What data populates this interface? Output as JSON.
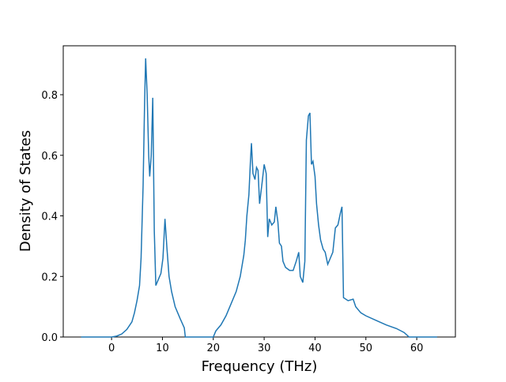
{
  "chart_data": {
    "type": "line",
    "x_label": "Frequency (THz)",
    "y_label": "Density of States",
    "x": [
      -6,
      0,
      1,
      2,
      3,
      4,
      4.5,
      5,
      5.5,
      5.8,
      6.2,
      6.5,
      6.7,
      7,
      7.3,
      7.5,
      7.8,
      8.1,
      8.4,
      8.7,
      9.2,
      9.7,
      10.1,
      10.5,
      10.9,
      11.3,
      11.8,
      12.5,
      13.5,
      14.3,
      14.5,
      20,
      20.5,
      21.5,
      22.5,
      23.5,
      24.5,
      25.3,
      26,
      26.3,
      26.6,
      27,
      27.3,
      27.5,
      27.8,
      28.2,
      28.5,
      28.8,
      29.1,
      29.6,
      30,
      30.4,
      30.7,
      31,
      31.5,
      32,
      32.3,
      32.7,
      33,
      33.4,
      33.7,
      34.2,
      35,
      35.7,
      36.3,
      36.8,
      37.1,
      37.6,
      38,
      38.3,
      38.7,
      39,
      39.3,
      39.6,
      40,
      40.3,
      40.7,
      41.1,
      41.6,
      42,
      42.5,
      43,
      43.5,
      44,
      44.5,
      45,
      45.3,
      45.6,
      46.5,
      47.5,
      48,
      49,
      50,
      52,
      54,
      56,
      57.5,
      58.5,
      64
    ],
    "series": [
      {
        "color": "#1f77b4",
        "values": [
          0,
          0,
          0.003,
          0.01,
          0.025,
          0.05,
          0.08,
          0.12,
          0.17,
          0.26,
          0.5,
          0.78,
          0.92,
          0.8,
          0.6,
          0.53,
          0.6,
          0.79,
          0.35,
          0.17,
          0.19,
          0.21,
          0.26,
          0.39,
          0.29,
          0.2,
          0.15,
          0.1,
          0.06,
          0.03,
          0,
          0,
          0.02,
          0.04,
          0.07,
          0.11,
          0.15,
          0.2,
          0.27,
          0.32,
          0.4,
          0.47,
          0.58,
          0.64,
          0.54,
          0.52,
          0.56,
          0.55,
          0.44,
          0.51,
          0.57,
          0.54,
          0.33,
          0.39,
          0.37,
          0.38,
          0.43,
          0.38,
          0.31,
          0.3,
          0.25,
          0.23,
          0.22,
          0.22,
          0.25,
          0.28,
          0.2,
          0.18,
          0.25,
          0.65,
          0.73,
          0.74,
          0.57,
          0.58,
          0.53,
          0.44,
          0.37,
          0.32,
          0.29,
          0.28,
          0.24,
          0.26,
          0.28,
          0.36,
          0.37,
          0.41,
          0.43,
          0.13,
          0.12,
          0.125,
          0.1,
          0.08,
          0.07,
          0.055,
          0.04,
          0.028,
          0.015,
          0,
          0
        ]
      }
    ],
    "xlim": [
      -9.5,
      67.6
    ],
    "ylim": [
      0,
      0.9616
    ],
    "xticks": [
      0,
      10,
      20,
      30,
      40,
      50,
      60
    ],
    "yticks": [
      {
        "value": 0,
        "label": "0.0"
      },
      0.2,
      0.4,
      0.6,
      0.8
    ]
  }
}
